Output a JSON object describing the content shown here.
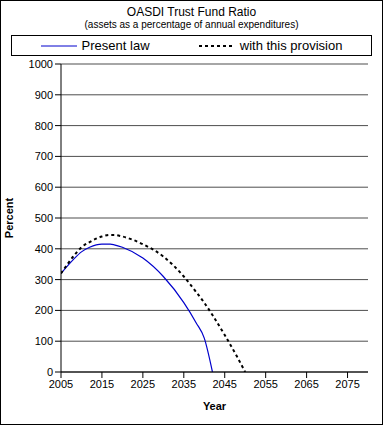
{
  "chart_data": {
    "type": "line",
    "title": "OASDI Trust Fund Ratio",
    "subtitle": "(assets as a percentage of annual expenditures)",
    "x_label": "Year",
    "y_label": "Percent",
    "x": [
      2005,
      2008,
      2010,
      2012,
      2015,
      2017,
      2018,
      2020,
      2025,
      2030,
      2035,
      2038,
      2040,
      2042,
      2045,
      2048,
      2050
    ],
    "series": [
      {
        "name": "Present law",
        "color": "#0000cc",
        "line_style": "solid",
        "values": [
          320,
          365,
          390,
          405,
          415,
          415,
          413,
          405,
          370,
          310,
          225,
          160,
          110,
          0,
          null,
          null,
          null
        ]
      },
      {
        "name": "with this provision",
        "color": "#000000",
        "line_style": "dotted",
        "values": [
          320,
          375,
          405,
          422,
          440,
          445,
          445,
          440,
          415,
          375,
          310,
          260,
          225,
          185,
          120,
          50,
          0
        ]
      }
    ],
    "xlim": [
      2005,
      2080
    ],
    "xticks": [
      2005,
      2015,
      2025,
      2035,
      2045,
      2055,
      2065,
      2075
    ],
    "ylim": [
      0,
      1000
    ],
    "yticks": [
      0,
      100,
      200,
      300,
      400,
      500,
      600,
      700,
      800,
      900,
      1000
    ],
    "grid": true,
    "legend": "top"
  }
}
